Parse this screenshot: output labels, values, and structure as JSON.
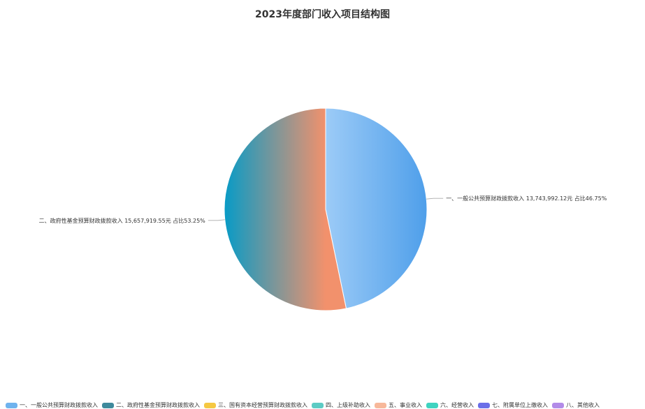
{
  "chart_data": {
    "type": "pie",
    "title": "2023年度部门收入项目结构图",
    "slices": [
      {
        "name": "一、一般公共预算财政拨款收入",
        "value": 13743992.12,
        "label": "一、一般公共预算财政拨款收入 13,743,992.12元 占比46.75%",
        "percent": 46.75,
        "color_from": "#9ccbf7",
        "color_to": "#4f9fea"
      },
      {
        "name": "二、政府性基金预算财政拨款收入",
        "value": 15657919.55,
        "label": "二、政府性基金预算财政拨款收入 15,657,919.55元 占比53.25%",
        "percent": 53.25,
        "color_from": "#089bc6",
        "color_to": "#f2916c"
      }
    ],
    "legend": {
      "position": "bottom",
      "items": [
        {
          "name": "一、一般公共预算财政拨款收入",
          "color": "#6fb3ee"
        },
        {
          "name": "二、政府性基金预算财政拨款收入",
          "color": "#3e8a9c"
        },
        {
          "name": "三、国有资本经营预算财政拨款收入",
          "color": "#f5c842"
        },
        {
          "name": "四、上级补助收入",
          "color": "#5ccbc4"
        },
        {
          "name": "五、事业收入",
          "color": "#f7b89a"
        },
        {
          "name": "六、经营收入",
          "color": "#3fd3c0"
        },
        {
          "name": "七、附属单位上缴收入",
          "color": "#6a6ee8"
        },
        {
          "name": "八、其他收入",
          "color": "#b28be8"
        }
      ]
    }
  }
}
